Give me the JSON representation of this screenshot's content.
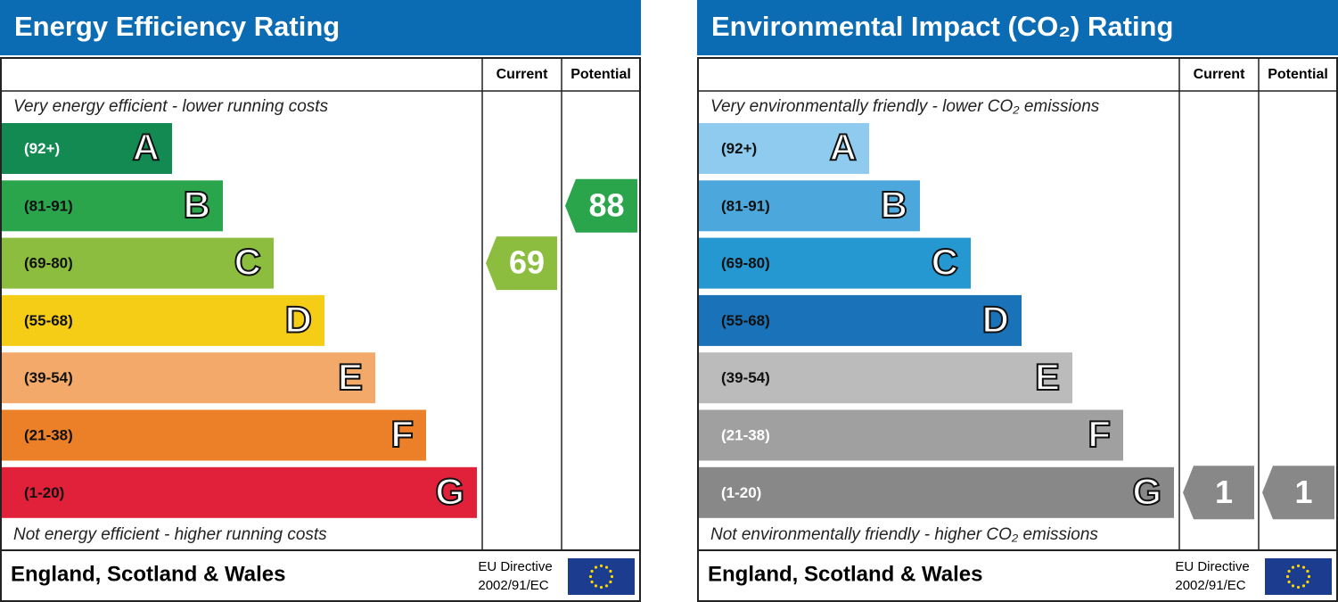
{
  "panels": [
    {
      "title": "Energy Efficiency Rating",
      "current_label": "Current",
      "potential_label": "Potential",
      "top_text": "Very energy efficient - lower running costs",
      "bottom_text": "Not energy efficient - higher running costs",
      "bands": [
        {
          "range": "(92+)",
          "letter": "A",
          "color": "#138a52",
          "text_color": "#ffffff"
        },
        {
          "range": "(81-91)",
          "letter": "B",
          "color": "#2aa54c",
          "text_color": "#111111"
        },
        {
          "range": "(69-80)",
          "letter": "C",
          "color": "#8cbd3f",
          "text_color": "#111111"
        },
        {
          "range": "(55-68)",
          "letter": "D",
          "color": "#f5cd16",
          "text_color": "#111111"
        },
        {
          "range": "(39-54)",
          "letter": "E",
          "color": "#f2a96a",
          "text_color": "#111111"
        },
        {
          "range": "(21-38)",
          "letter": "F",
          "color": "#ec8028",
          "text_color": "#111111"
        },
        {
          "range": "(1-20)",
          "letter": "G",
          "color": "#e1213a",
          "text_color": "#111111"
        }
      ],
      "current": 69,
      "potential": 88,
      "footer": "England, Scotland & Wales",
      "directive": [
        "EU Directive",
        "2002/91/EC"
      ]
    },
    {
      "title": "Environmental Impact (CO₂) Rating",
      "current_label": "Current",
      "potential_label": "Potential",
      "top_text": "Very environmentally friendly - lower CO₂ emissions",
      "bottom_text": "Not environmentally friendly - higher CO₂ emissions",
      "bands": [
        {
          "range": "(92+)",
          "letter": "A",
          "color": "#8ecbef",
          "text_color": "#111111"
        },
        {
          "range": "(81-91)",
          "letter": "B",
          "color": "#4ca8dc",
          "text_color": "#111111"
        },
        {
          "range": "(69-80)",
          "letter": "C",
          "color": "#2598d2",
          "text_color": "#111111"
        },
        {
          "range": "(55-68)",
          "letter": "D",
          "color": "#1a72b8",
          "text_color": "#111111"
        },
        {
          "range": "(39-54)",
          "letter": "E",
          "color": "#bbbbbb",
          "text_color": "#111111"
        },
        {
          "range": "(21-38)",
          "letter": "F",
          "color": "#a0a0a0",
          "text_color": "#ffffff"
        },
        {
          "range": "(1-20)",
          "letter": "G",
          "color": "#888888",
          "text_color": "#ffffff"
        }
      ],
      "current": 1,
      "potential": 1,
      "footer": "England, Scotland & Wales",
      "directive": [
        "EU Directive",
        "2002/91/EC"
      ]
    }
  ]
}
